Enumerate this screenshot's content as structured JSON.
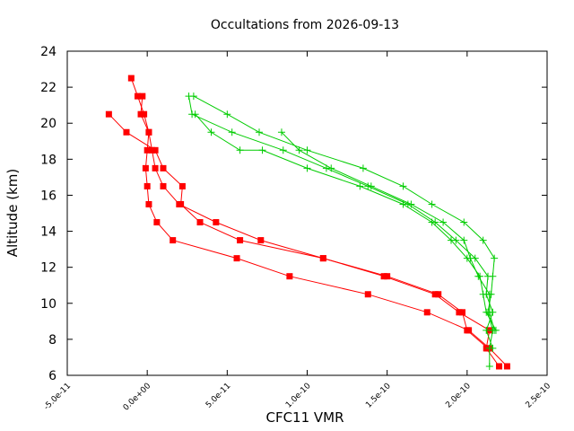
{
  "chart_data": {
    "type": "line",
    "title": "Occultations from 2026-09-13",
    "xlabel": "CFC11 VMR",
    "ylabel": "Altitude (km)",
    "xlim": [
      -5e-11,
      2.5e-10
    ],
    "ylim": [
      6,
      24
    ],
    "x_ticks": [
      "-5.0e-11",
      "0.0e+00",
      "5.0e-11",
      "1.0e-10",
      "1.5e-10",
      "2.0e-10",
      "2.5e-10"
    ],
    "x_tick_values": [
      -5e-11,
      0,
      5e-11,
      1e-10,
      1.5e-10,
      2e-10,
      2.5e-10
    ],
    "y_ticks": [
      "6",
      "8",
      "10",
      "12",
      "14",
      "16",
      "18",
      "20",
      "22",
      "24"
    ],
    "y_tick_values": [
      6,
      8,
      10,
      12,
      14,
      16,
      18,
      20,
      22,
      24
    ],
    "grid": false,
    "legend": "none",
    "series": [
      {
        "color": "#ff0000",
        "marker": "square",
        "points": [
          [
            2.25e-10,
            6.5
          ],
          [
            2.14e-10,
            7.5
          ],
          [
            2.01e-10,
            8.5
          ],
          [
            1.75e-10,
            9.5
          ],
          [
            1.38e-10,
            10.5
          ],
          [
            8.9e-11,
            11.5
          ],
          [
            5.6e-11,
            12.5
          ],
          [
            1.6e-11,
            13.5
          ],
          [
            6e-12,
            14.5
          ],
          [
            1e-12,
            15.5
          ],
          [
            0.0,
            16.5
          ],
          [
            -1e-12,
            17.5
          ],
          [
            0.0,
            18.5
          ],
          [
            1e-12,
            19.5
          ],
          [
            -2e-12,
            20.5
          ],
          [
            -6e-12,
            21.5
          ],
          [
            -1e-11,
            22.5
          ]
        ]
      },
      {
        "color": "#ff0000",
        "marker": "square",
        "points": [
          [
            2.2e-10,
            6.5
          ],
          [
            2.12e-10,
            7.5
          ],
          [
            2.14e-10,
            8.5
          ],
          [
            1.95e-10,
            9.5
          ],
          [
            1.8e-10,
            10.5
          ],
          [
            1.48e-10,
            11.5
          ],
          [
            1.1e-10,
            12.5
          ],
          [
            7.1e-11,
            13.5
          ],
          [
            4.3e-11,
            14.5
          ],
          [
            2e-11,
            15.5
          ],
          [
            1e-11,
            16.5
          ],
          [
            5e-12,
            17.5
          ],
          [
            3e-12,
            18.5
          ],
          [
            1e-12,
            19.5
          ],
          [
            -4e-12,
            20.5
          ],
          [
            -3e-12,
            21.5
          ]
        ]
      },
      {
        "color": "#ff0000",
        "marker": "square",
        "points": [
          [
            2.13e-10,
            7.5
          ],
          [
            2e-10,
            8.5
          ],
          [
            1.97e-10,
            9.5
          ],
          [
            1.82e-10,
            10.5
          ],
          [
            1.5e-10,
            11.5
          ],
          [
            1.1e-10,
            12.5
          ],
          [
            5.8e-11,
            13.5
          ],
          [
            3.3e-11,
            14.5
          ],
          [
            2.1e-11,
            15.5
          ],
          [
            2.2e-11,
            16.5
          ],
          [
            1e-11,
            17.5
          ],
          [
            5e-12,
            18.5
          ],
          [
            -1.3e-11,
            19.5
          ],
          [
            -2.4e-11,
            20.5
          ]
        ]
      },
      {
        "color": "#00cc00",
        "marker": "plus",
        "points": [
          [
            2.14e-10,
            6.5
          ],
          [
            2.14e-10,
            7.5
          ],
          [
            2.16e-10,
            8.5
          ],
          [
            2.13e-10,
            9.5
          ],
          [
            2.15e-10,
            10.5
          ],
          [
            2.16e-10,
            11.5
          ],
          [
            2.17e-10,
            12.5
          ],
          [
            2.1e-10,
            13.5
          ],
          [
            1.98e-10,
            14.5
          ],
          [
            1.78e-10,
            15.5
          ],
          [
            1.6e-10,
            16.5
          ],
          [
            1.35e-10,
            17.5
          ],
          [
            1e-10,
            18.5
          ],
          [
            7e-11,
            19.5
          ],
          [
            5e-11,
            20.5
          ],
          [
            2.9e-11,
            21.5
          ]
        ]
      },
      {
        "color": "#00cc00",
        "marker": "plus",
        "points": [
          [
            2.16e-10,
            7.5
          ],
          [
            2.12e-10,
            8.5
          ],
          [
            2.16e-10,
            9.5
          ],
          [
            2.12e-10,
            10.5
          ],
          [
            2.13e-10,
            11.5
          ],
          [
            2.05e-10,
            12.5
          ],
          [
            1.93e-10,
            13.5
          ],
          [
            1.8e-10,
            14.5
          ],
          [
            1.63e-10,
            15.5
          ],
          [
            1.38e-10,
            16.5
          ],
          [
            1.12e-10,
            17.5
          ],
          [
            8.5e-11,
            18.5
          ],
          [
            5.3e-11,
            19.5
          ],
          [
            2.8e-11,
            20.5
          ],
          [
            2.6e-11,
            21.5
          ]
        ]
      },
      {
        "color": "#00cc00",
        "marker": "plus",
        "points": [
          [
            2.18e-10,
            8.5
          ],
          [
            2.12e-10,
            9.5
          ],
          [
            2.1e-10,
            10.5
          ],
          [
            2.08e-10,
            11.5
          ],
          [
            2e-10,
            12.5
          ],
          [
            1.9e-10,
            13.5
          ],
          [
            1.78e-10,
            14.5
          ],
          [
            1.6e-10,
            15.5
          ],
          [
            1.33e-10,
            16.5
          ],
          [
            1e-10,
            17.5
          ],
          [
            7.2e-11,
            18.5
          ],
          [
            5.8e-11,
            18.5
          ],
          [
            4e-11,
            19.5
          ],
          [
            3e-11,
            20.5
          ]
        ]
      },
      {
        "color": "#00cc00",
        "marker": "plus",
        "points": [
          [
            2.17e-10,
            8.5
          ],
          [
            2.14e-10,
            9.5
          ],
          [
            2.14e-10,
            10.5
          ],
          [
            2.07e-10,
            11.5
          ],
          [
            2.02e-10,
            12.5
          ],
          [
            1.98e-10,
            13.5
          ],
          [
            1.85e-10,
            14.5
          ],
          [
            1.65e-10,
            15.5
          ],
          [
            1.4e-10,
            16.5
          ],
          [
            1.15e-10,
            17.5
          ],
          [
            9.5e-11,
            18.5
          ],
          [
            8.4e-11,
            19.5
          ]
        ]
      }
    ]
  }
}
